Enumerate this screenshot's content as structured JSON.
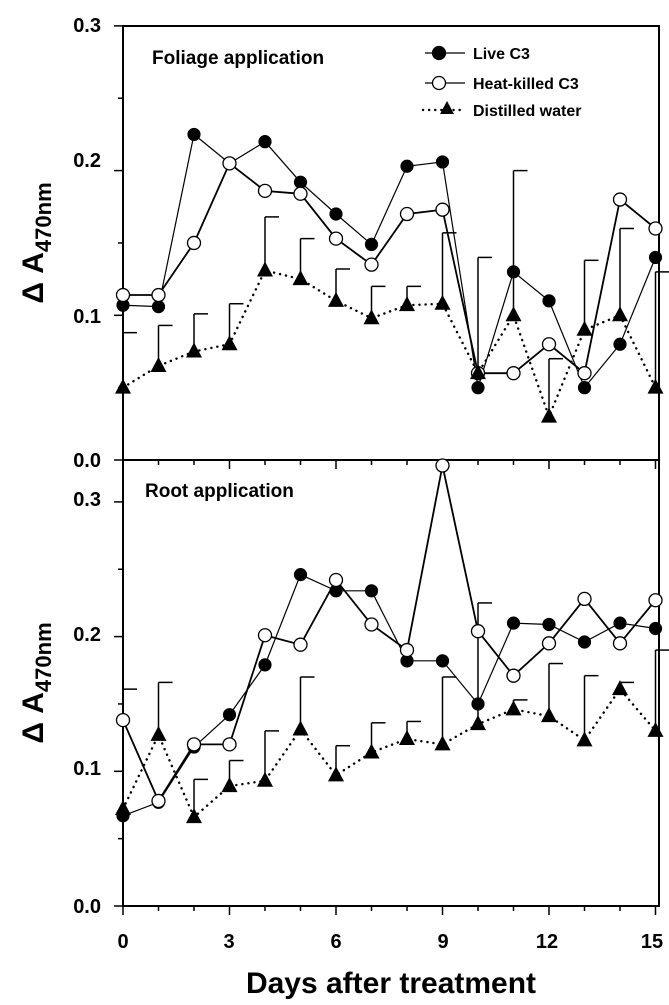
{
  "x_axis": {
    "label": "Days after treatment",
    "ticks": [
      "0",
      "3",
      "6",
      "9",
      "12",
      "15"
    ]
  },
  "legend": {
    "items": [
      {
        "label": "Live C3",
        "marker": "filled-circle",
        "line": "solid"
      },
      {
        "label": "Heat-killed C3",
        "marker": "open-circle",
        "line": "solid"
      },
      {
        "label": "Distilled water",
        "marker": "filled-triangle",
        "line": "dotted"
      }
    ]
  },
  "chart_data": [
    {
      "type": "line",
      "title": "Foliage application",
      "xlabel": "",
      "ylabel": "Δ A470nm",
      "ylabel_symbol": "Δ A",
      "ylabel_sub": "470nm",
      "xlim": [
        0,
        15
      ],
      "ylim": [
        0,
        0.3
      ],
      "yticks": [
        "0.0",
        "0.1",
        "0.2",
        "0.3"
      ],
      "x": [
        0,
        1,
        2,
        3,
        4,
        5,
        6,
        7,
        8,
        9,
        10,
        11,
        12,
        13,
        14,
        15
      ],
      "series": [
        {
          "name": "Live C3",
          "values": [
            0.107,
            0.106,
            0.225,
            0.205,
            0.22,
            0.192,
            0.17,
            0.149,
            0.203,
            0.206,
            0.05,
            0.13,
            0.11,
            0.05,
            0.08,
            0.14
          ]
        },
        {
          "name": "Heat-killed C3",
          "values": [
            0.114,
            0.114,
            0.15,
            0.205,
            0.186,
            0.184,
            0.153,
            0.135,
            0.17,
            0.173,
            0.06,
            0.06,
            0.08,
            0.06,
            0.18,
            0.16
          ]
        },
        {
          "name": "Distilled water",
          "values": [
            0.05,
            0.065,
            0.075,
            0.08,
            0.131,
            0.125,
            0.11,
            0.098,
            0.107,
            0.108,
            0.06,
            0.1,
            0.03,
            0.09,
            0.1,
            0.05
          ],
          "error_upper": [
            0.088,
            0.093,
            0.101,
            0.108,
            0.168,
            0.153,
            0.132,
            0.12,
            0.12,
            0.157,
            0.14,
            0.2,
            0.07,
            0.138,
            0.16,
            0.13
          ]
        }
      ]
    },
    {
      "type": "line",
      "title": "Root application",
      "xlabel": "Days after treatment",
      "ylabel": "Δ A470nm",
      "ylabel_symbol": "Δ A",
      "ylabel_sub": "470nm",
      "xlim": [
        0,
        15
      ],
      "ylim": [
        0,
        0.35
      ],
      "yticks": [
        "0.0",
        "0.1",
        "0.2",
        "0.3"
      ],
      "x": [
        0,
        1,
        2,
        3,
        4,
        5,
        6,
        7,
        8,
        9,
        10,
        11,
        12,
        13,
        14,
        15
      ],
      "series": [
        {
          "name": "Live C3",
          "values": [
            0.067,
            0.077,
            0.118,
            0.142,
            0.179,
            0.246,
            0.234,
            0.234,
            0.182,
            0.182,
            0.15,
            0.21,
            0.209,
            0.196,
            0.21,
            0.206
          ]
        },
        {
          "name": "Heat-killed C3",
          "values": [
            0.138,
            0.078,
            0.12,
            0.12,
            0.201,
            0.194,
            0.242,
            0.209,
            0.19,
            0.327,
            0.204,
            0.171,
            0.195,
            0.228,
            0.195,
            0.227
          ]
        },
        {
          "name": "Distilled water",
          "values": [
            0.072,
            0.127,
            0.066,
            0.089,
            0.093,
            0.131,
            0.097,
            0.114,
            0.124,
            0.12,
            0.135,
            0.146,
            0.141,
            0.123,
            0.161,
            0.13
          ],
          "error_upper": [
            0.161,
            0.166,
            0.094,
            0.108,
            0.13,
            0.17,
            0.119,
            0.136,
            0.137,
            0.17,
            0.225,
            0.153,
            0.18,
            0.171,
            0.166,
            0.19
          ]
        }
      ]
    }
  ]
}
